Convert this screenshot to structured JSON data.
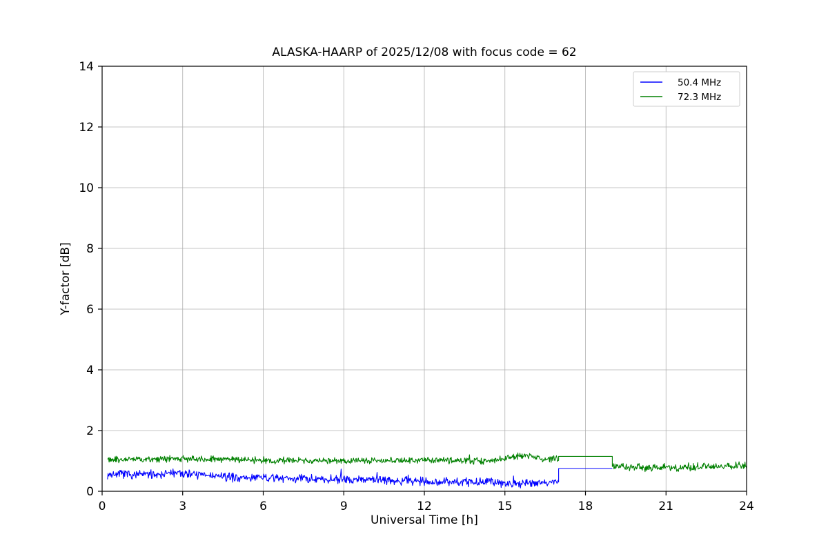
{
  "figure": {
    "background": "#ffffff"
  },
  "chart_data": {
    "type": "line",
    "title": "ALASKA-HAARP of 2025/12/08 with focus code = 62",
    "xlabel": "Universal Time [h]",
    "ylabel": "Y-factor [dB]",
    "xlim": [
      0,
      24
    ],
    "ylim": [
      0,
      14
    ],
    "xticks": [
      0,
      3,
      6,
      9,
      12,
      15,
      18,
      21,
      24
    ],
    "yticks": [
      0,
      2,
      4,
      6,
      8,
      10,
      12,
      14
    ],
    "grid": true,
    "grid_color": "#b0b0b0",
    "legend": {
      "position": "upper right",
      "entries": [
        "50.4 MHz",
        "72.3 MHz"
      ]
    },
    "series": [
      {
        "name": "50.4 MHz",
        "color": "#0000ff",
        "segments": [
          {
            "type": "noisy",
            "x": [
              0.2,
              1.5,
              2.8,
              3.5,
              5.0,
              8.0,
              10.0,
              12.0,
              14.0,
              15.5,
              16.5,
              17.0
            ],
            "mean": [
              0.55,
              0.55,
              0.6,
              0.55,
              0.45,
              0.42,
              0.38,
              0.33,
              0.3,
              0.27,
              0.3,
              0.35
            ],
            "amplitude": 0.13
          },
          {
            "type": "flat",
            "x": [
              17.0,
              19.0
            ],
            "value": 0.75
          }
        ]
      },
      {
        "name": "72.3 MHz",
        "color": "#008000",
        "segments": [
          {
            "type": "noisy",
            "x": [
              0.2,
              1.5,
              3.0,
              4.0,
              6.0,
              9.0,
              12.0,
              14.6,
              15.3,
              16.0,
              16.6,
              17.0
            ],
            "mean": [
              1.05,
              1.05,
              1.08,
              1.06,
              1.02,
              1.0,
              1.02,
              1.0,
              1.15,
              1.18,
              1.05,
              1.1
            ],
            "amplitude": 0.1
          },
          {
            "type": "flat",
            "x": [
              17.0,
              19.0
            ],
            "value": 1.15
          },
          {
            "type": "noisy",
            "x": [
              19.0,
              19.5,
              21.0,
              22.0,
              23.0,
              24.0
            ],
            "mean": [
              0.85,
              0.8,
              0.78,
              0.8,
              0.82,
              0.85
            ],
            "amplitude": 0.12
          }
        ]
      }
    ]
  }
}
